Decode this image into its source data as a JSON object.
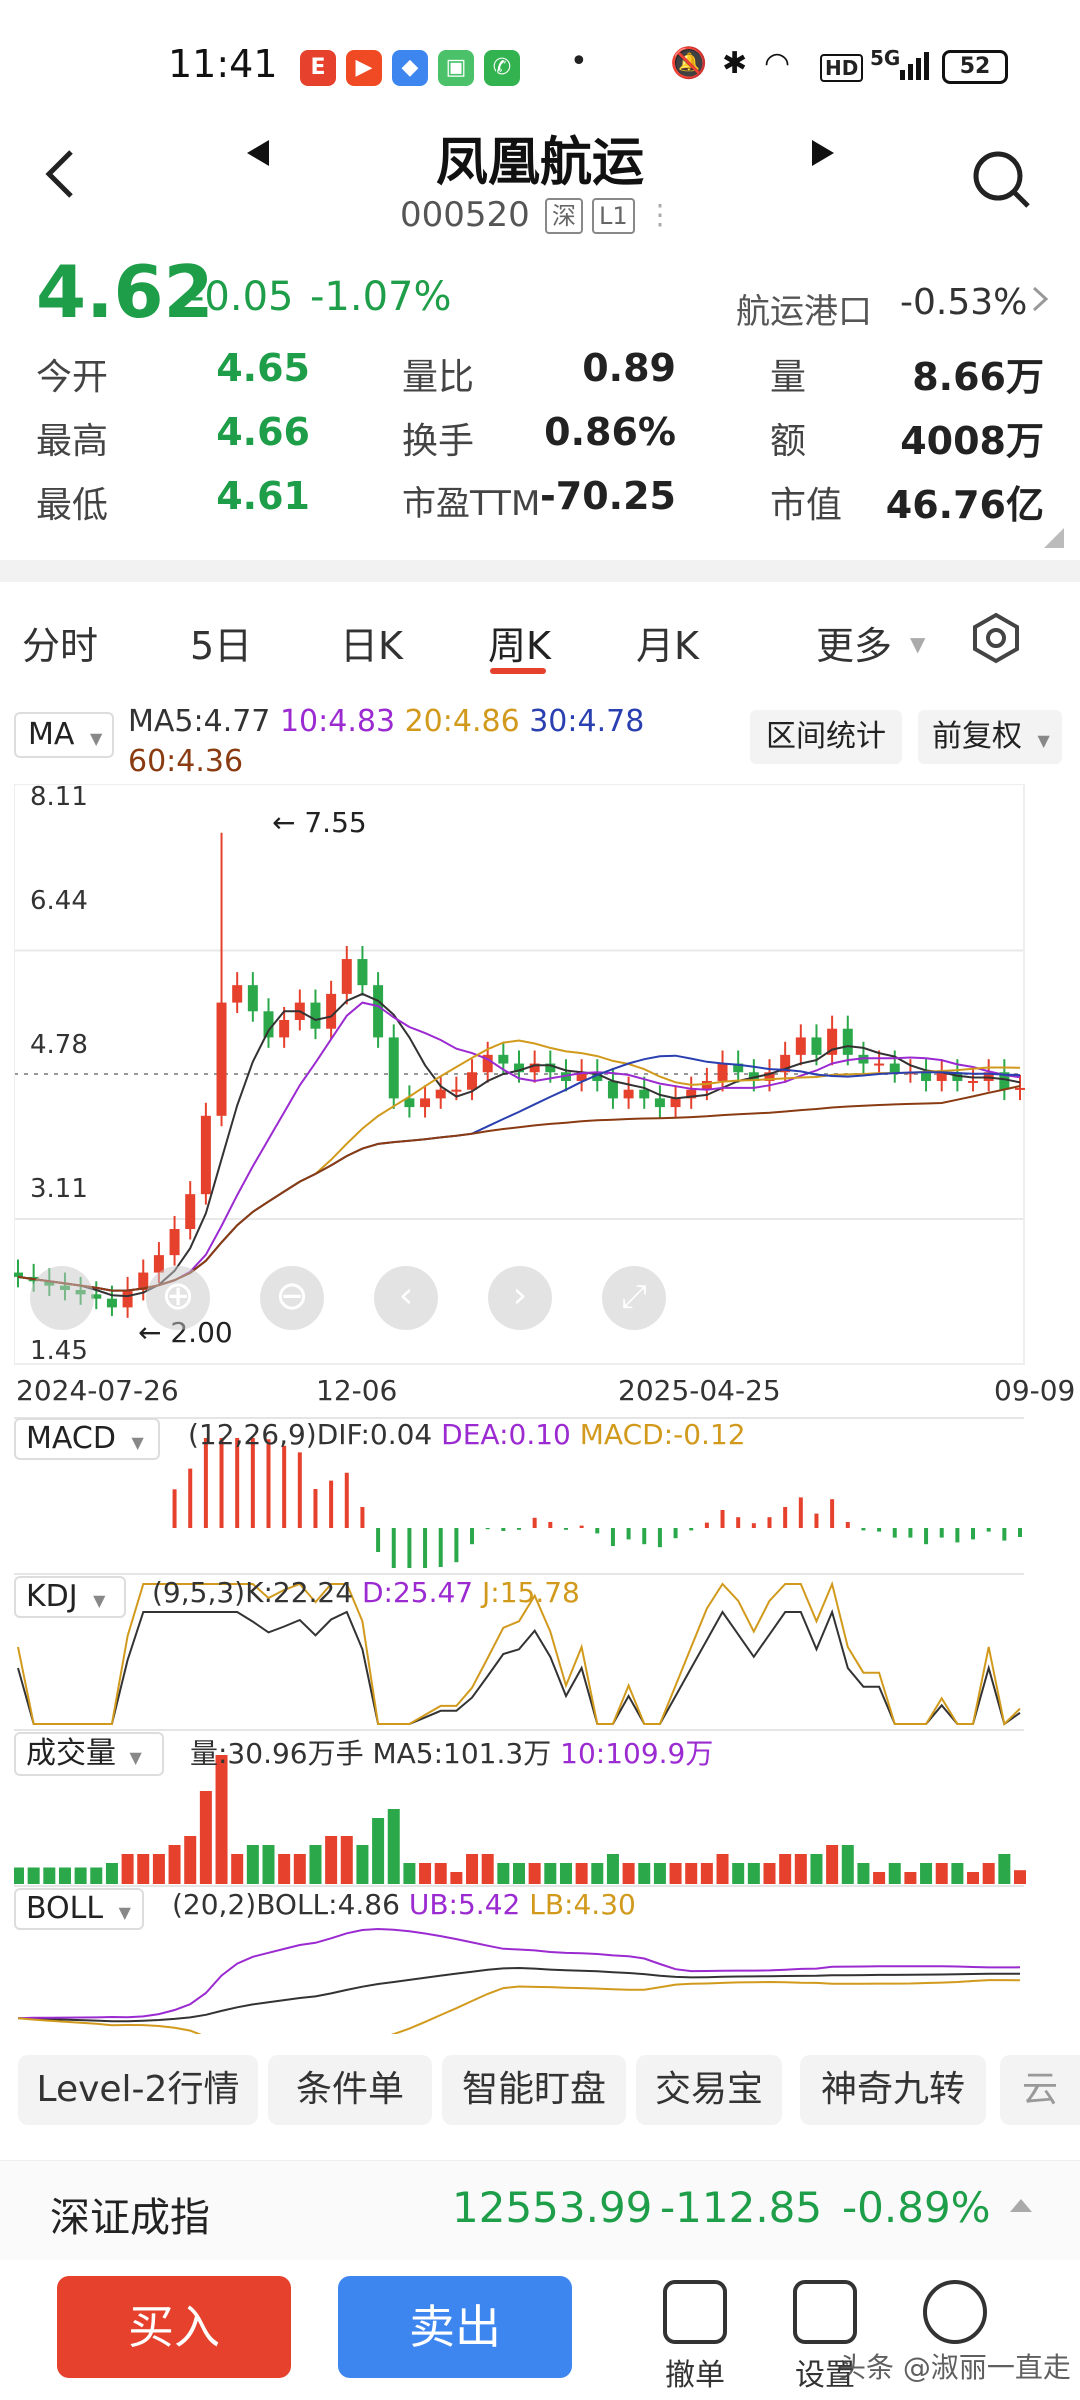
{
  "status_bar": {
    "time": "11:41",
    "battery": "52",
    "network": "5G",
    "hd": "HD"
  },
  "header": {
    "name": "凤凰航运",
    "code": "000520",
    "exchange_tag": "深",
    "level_tag": "L1"
  },
  "quote": {
    "price": "4.62",
    "change": "-0.05",
    "change_pct": "-1.07%",
    "sector_name": "航运港口",
    "sector_pct": "-0.53%",
    "rows": [
      [
        {
          "label": "今开",
          "value": "4.65"
        },
        {
          "label": "量比",
          "value": "0.89"
        },
        {
          "label": "量",
          "value": "8.66万"
        }
      ],
      [
        {
          "label": "最高",
          "value": "4.66"
        },
        {
          "label": "换手",
          "value": "0.86%"
        },
        {
          "label": "额",
          "value": "4008万"
        }
      ],
      [
        {
          "label": "最低",
          "value": "4.61"
        },
        {
          "label": "市盈TTM",
          "value": "-70.25"
        },
        {
          "label": "市值",
          "value": "46.76亿"
        }
      ]
    ]
  },
  "tabs": {
    "t1": "分时",
    "t2": "5日",
    "t3": "日K",
    "t4": "周K",
    "t5": "月K",
    "t6": "更多"
  },
  "ma_panel": {
    "selector": "MA",
    "ma5": "MA5:4.77",
    "ma10": "10:4.83",
    "ma20": "20:4.86",
    "ma30": "30:4.78",
    "ma60": "60:4.36",
    "btn_range": "区间统计",
    "btn_adjust": "前复权"
  },
  "main_chart": {
    "y_labels": [
      "8.11",
      "6.44",
      "4.78",
      "3.11",
      "1.45"
    ],
    "x_labels": [
      "2024-07-26",
      "12-06",
      "2025-04-25",
      "09-09"
    ],
    "high_label": "← 7.55",
    "low_label": "← 2.00"
  },
  "macd": {
    "selector": "MACD",
    "params": "(12,26,9)DIF:0.04",
    "dea": "DEA:0.10",
    "macd": "MACD:-0.12"
  },
  "kdj": {
    "selector": "KDJ",
    "params": "(9,5,3)K:22.24",
    "d": "D:25.47",
    "j": "J:15.78"
  },
  "volume": {
    "selector": "成交量",
    "vol": "量:30.96万手 MA5:101.3万",
    "ma10": "10:109.9万"
  },
  "boll": {
    "selector": "BOLL",
    "params": "(20,2)BOLL:4.86",
    "ub": "UB:5.42",
    "lb": "LB:4.30"
  },
  "chips": [
    "Level-2行情",
    "条件单",
    "智能盯盘",
    "交易宝",
    "神奇九转",
    "云"
  ],
  "index_bar": {
    "name": "深证成指",
    "value": "12553.99",
    "change": "-112.85",
    "pct": "-0.89%"
  },
  "bottom": {
    "buy": "买入",
    "sell": "卖出",
    "cancel": "撤单",
    "settings": "设置",
    "watermark": "头条 @淑丽一直走"
  },
  "chart_data": {
    "type": "candlestick",
    "ylim": [
      1.45,
      8.11
    ],
    "weekly_close": [
      2.45,
      2.4,
      2.35,
      2.3,
      2.25,
      2.2,
      2.1,
      2.3,
      2.5,
      2.7,
      3.0,
      3.4,
      4.3,
      5.6,
      5.8,
      5.5,
      5.2,
      5.4,
      5.6,
      5.3,
      5.7,
      6.1,
      5.8,
      5.2,
      4.5,
      4.4,
      4.5,
      4.6,
      4.6,
      4.8,
      5.0,
      4.9,
      4.8,
      4.9,
      4.8,
      4.7,
      4.8,
      4.7,
      4.5,
      4.6,
      4.5,
      4.4,
      4.5,
      4.6,
      4.7,
      4.9,
      4.8,
      4.7,
      4.8,
      5.0,
      5.2,
      5.0,
      5.3,
      5.0,
      4.9,
      4.9,
      4.8,
      4.8,
      4.7,
      4.8,
      4.7,
      4.7,
      4.8,
      4.6,
      4.62
    ],
    "high": 7.55,
    "low": 2.0
  }
}
